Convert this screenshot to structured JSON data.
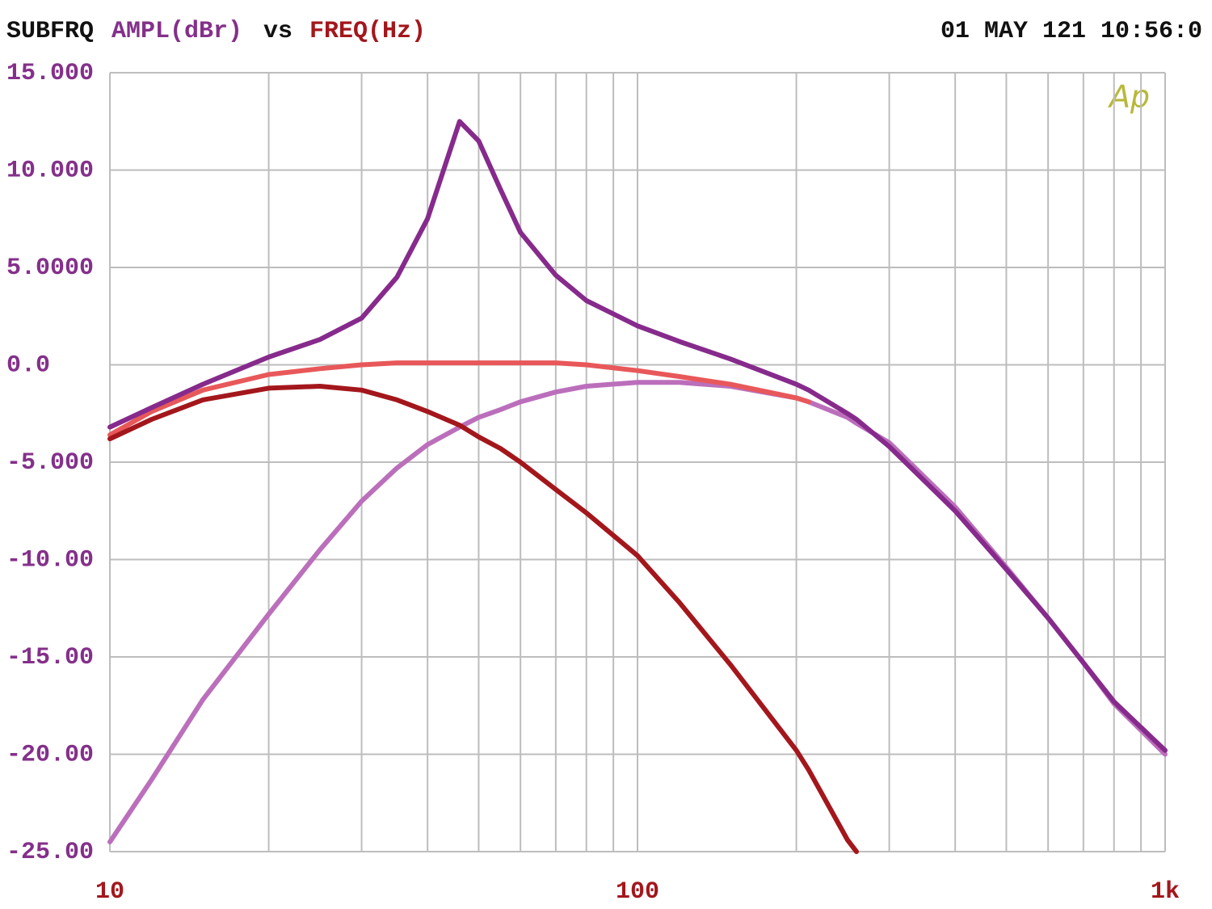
{
  "chart_data": {
    "type": "line",
    "title": "SUBFRQ",
    "ylabel": "AMPL(dBr)",
    "vs": "vs",
    "xlabel": "FREQ(Hz)",
    "timestamp": "01 MAY 121 10:56:0",
    "logo": "Ap",
    "x_log": true,
    "grid": true,
    "xlim": [
      10,
      1000
    ],
    "ylim": [
      -25,
      15
    ],
    "xticks": [
      10,
      100,
      {
        "value": 1000,
        "label": "1k"
      }
    ],
    "x_minor_grid": [
      20,
      30,
      40,
      50,
      60,
      70,
      80,
      90,
      200,
      300,
      400,
      500,
      600,
      700,
      800,
      900
    ],
    "yticks": [
      {
        "value": 15,
        "label": "15.000"
      },
      {
        "value": 10,
        "label": "10.000"
      },
      {
        "value": 5,
        "label": "5.0000"
      },
      {
        "value": 0,
        "label": "0.0"
      },
      {
        "value": -5,
        "label": "-5.000"
      },
      {
        "value": -10,
        "label": "-10.00"
      },
      {
        "value": -15,
        "label": "-15.00"
      },
      {
        "value": -20,
        "label": "-20.00"
      },
      {
        "value": -25,
        "label": "-25.00"
      }
    ],
    "x": [
      10,
      12,
      15,
      20,
      25,
      30,
      35,
      40,
      46,
      50,
      55,
      60,
      70,
      80,
      100,
      120,
      150,
      200,
      211,
      250,
      260,
      300,
      400,
      500,
      600,
      700,
      800,
      1000
    ],
    "series": [
      {
        "color": "#bb6fbb",
        "values": [
          -24.5,
          -21.3,
          -17.2,
          -12.8,
          -9.5,
          -7.0,
          -5.3,
          -4.1,
          -3.2,
          -2.7,
          -2.3,
          -1.9,
          -1.4,
          -1.1,
          -0.9,
          -0.9,
          -1.1,
          -1.7,
          -1.9,
          -2.7,
          -3.0,
          -4.0,
          -7.3,
          -10.4,
          -13.0,
          -15.3,
          -17.4,
          -20.0
        ]
      },
      {
        "color": "#e8585a",
        "values": [
          -3.6,
          -2.4,
          -1.3,
          -0.5,
          -0.2,
          0,
          0.1,
          0.1,
          0.1,
          0.1,
          0.1,
          0.1,
          0.1,
          0.0,
          -0.3,
          -0.6,
          -1.0,
          -1.7,
          -1.9,
          null,
          null,
          null,
          null,
          null,
          null,
          null,
          null,
          null
        ]
      },
      {
        "color": "#a3171c",
        "values": [
          -3.8,
          -2.8,
          -1.8,
          -1.2,
          -1.1,
          -1.3,
          -1.8,
          -2.4,
          -3.1,
          -3.7,
          -4.3,
          -5.0,
          -6.4,
          -7.6,
          -9.8,
          -12.2,
          -15.4,
          -19.8,
          -20.8,
          -24.4,
          -25.0,
          null,
          null,
          null,
          null,
          null,
          null,
          null
        ]
      },
      {
        "color": "#862a8c",
        "values": [
          -3.2,
          -2.2,
          -1.0,
          0.4,
          1.3,
          2.4,
          4.5,
          7.5,
          12.5,
          11.5,
          9.0,
          6.8,
          4.6,
          3.3,
          2.0,
          1.2,
          0.3,
          -1.0,
          -1.3,
          -2.5,
          -2.8,
          -4.2,
          -7.5,
          -10.5,
          -13.0,
          -15.3,
          -17.3,
          -19.8
        ]
      }
    ]
  }
}
